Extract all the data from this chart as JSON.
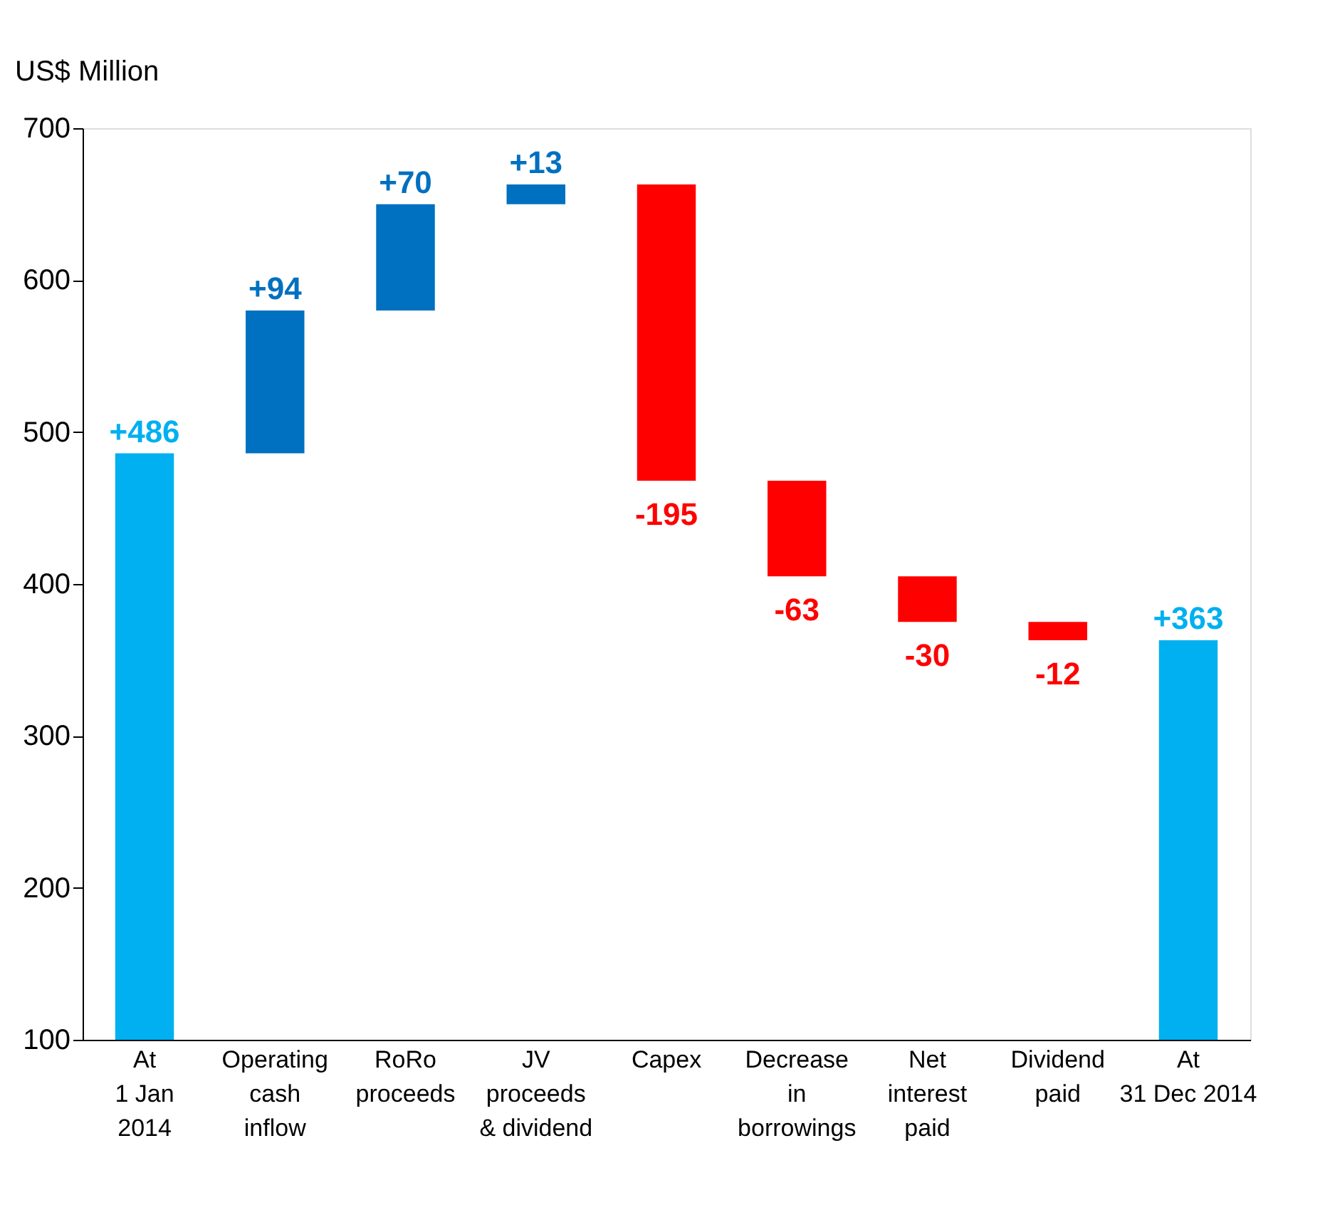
{
  "chart_data": {
    "type": "bar",
    "ylabel": "US$ Million",
    "categories": [
      "At\n1 Jan\n2014",
      "Operating\ncash\ninflow",
      "RoRo\nproceeds",
      "JV\nproceeds\n& dividend",
      "Capex",
      "Decrease\nin\nborrowings",
      "Net\ninterest\npaid",
      "Dividend\npaid",
      "At\n31 Dec 2014"
    ],
    "values": [
      386,
      94,
      70,
      13,
      -195,
      -63,
      -30,
      -12,
      263
    ],
    "base": [
      100,
      486,
      580,
      650,
      663,
      468,
      405,
      375,
      100
    ],
    "colors": [
      "#00b0f0",
      "#0070c0",
      "#0070c0",
      "#0070c0",
      "#ff0000",
      "#ff0000",
      "#ff0000",
      "#ff0000",
      "#00b0f0"
    ],
    "value_labels": [
      "+486",
      "+94",
      "+70",
      "+13",
      "-195",
      "-63",
      "-30",
      "-12",
      "+363"
    ],
    "ylim": [
      100,
      700
    ],
    "yticks": [
      100,
      200,
      300,
      400,
      500,
      600,
      700
    ]
  }
}
